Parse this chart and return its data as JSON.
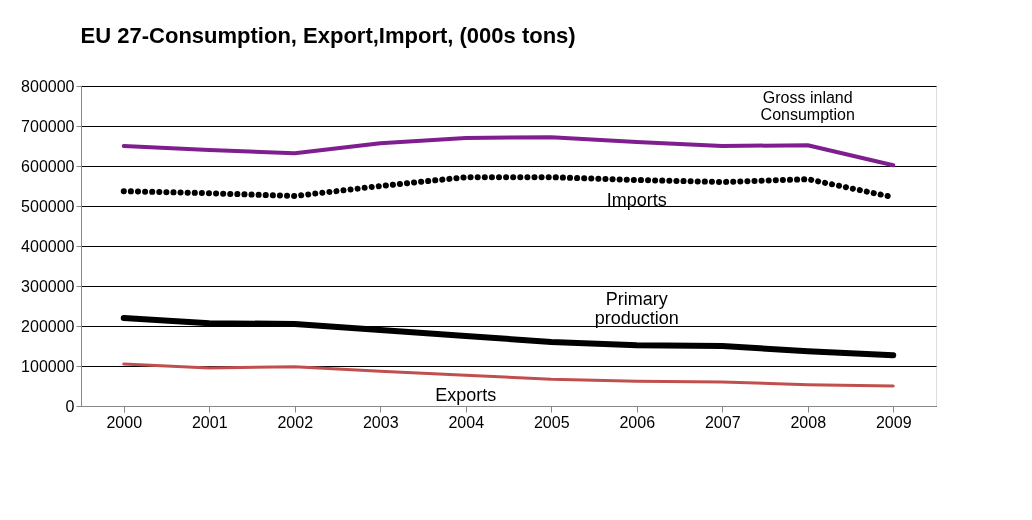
{
  "chart_data": {
    "type": "line",
    "title": "EU 27-Consumption,  Export,Import, (000s tons)",
    "categories": [
      "2000",
      "2001",
      "2002",
      "2003",
      "2004",
      "2005",
      "2006",
      "2007",
      "2008",
      "2009"
    ],
    "ylim": [
      0,
      800000
    ],
    "yticks": [
      0,
      100000,
      200000,
      300000,
      400000,
      500000,
      600000,
      700000,
      800000
    ],
    "grid": "y",
    "legend": false,
    "series": [
      {
        "name": "Gross inland\nConsumption",
        "color": "#7f1f8f",
        "line_style": "solid",
        "values": [
          650000,
          640000,
          632000,
          657000,
          670000,
          672000,
          660000,
          650000,
          652000,
          602000
        ]
      },
      {
        "name": "Imports",
        "color": "#000000",
        "line_style": "dotted",
        "values": [
          537000,
          532000,
          525000,
          550000,
          572000,
          572000,
          565000,
          560000,
          567000,
          522000
        ]
      },
      {
        "name": "Primary\nproduction",
        "color": "#000000",
        "line_style": "solid",
        "values": [
          220000,
          207000,
          205000,
          190000,
          175000,
          160000,
          152000,
          150000,
          137000,
          127000
        ]
      },
      {
        "name": "Exports",
        "color": "#c0504d",
        "line_style": "solid",
        "values": [
          105000,
          95000,
          98000,
          87000,
          77000,
          67000,
          62000,
          60000,
          53000,
          50000
        ]
      }
    ]
  }
}
